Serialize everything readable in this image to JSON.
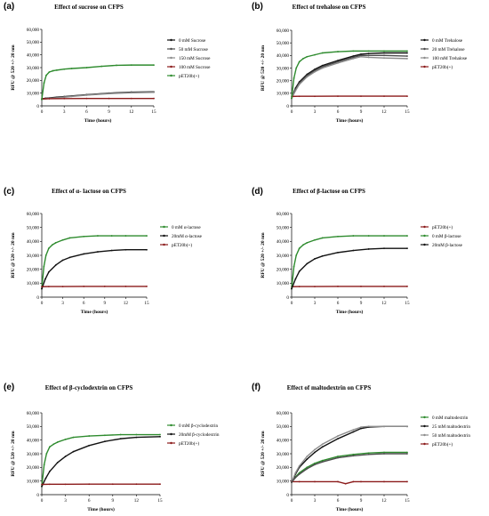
{
  "figure": {
    "colors": {
      "green": "#2e8b2e",
      "dark_red": "#8b1a1a",
      "black": "#111111",
      "grey": "#8c8c8c",
      "dark_grey": "#4d4d4d"
    }
  },
  "chart_data": [
    {
      "panel": "(a)",
      "type": "line",
      "title": "Effect of sucrose on CFPS",
      "xlabel": "Time (hours)",
      "ylabel": "RFU @ 520 +/- 20 nm",
      "xlim": [
        0,
        15
      ],
      "ylim": [
        0,
        60000
      ],
      "xticks": [
        "0",
        "3",
        "6",
        "9",
        "12",
        "15"
      ],
      "yticks": [
        "0",
        "10,000",
        "20,000",
        "30,000",
        "40,000",
        "50,000",
        "60,000"
      ],
      "legend_position": "right",
      "series": [
        {
          "name": "0 mM Sucrose",
          "color": "#111111",
          "x": [
            0,
            0.5,
            1,
            2,
            3,
            4,
            6,
            9,
            12,
            15
          ],
          "y": [
            5500,
            6000,
            6200,
            6800,
            7300,
            7800,
            8800,
            10000,
            10800,
            11000
          ]
        },
        {
          "name": "50 mM Sucrose",
          "color": "#4d4d4d",
          "x": [
            0,
            0.5,
            1,
            2,
            3,
            4,
            6,
            9,
            12,
            15
          ],
          "y": [
            5300,
            5800,
            6000,
            6500,
            7000,
            7600,
            8600,
            9800,
            10500,
            10800
          ]
        },
        {
          "name": "150 mM Sucrose",
          "color": "#8c8c8c",
          "x": [
            0,
            0.5,
            1,
            2,
            3,
            4,
            6,
            9,
            12,
            15
          ],
          "y": [
            5000,
            5500,
            5800,
            6200,
            6800,
            7400,
            8400,
            9600,
            10300,
            10600
          ]
        },
        {
          "name": "100 mM Sucrose",
          "color": "#8b1a1a",
          "x": [
            0,
            1,
            3,
            6,
            9,
            12,
            15
          ],
          "y": [
            5500,
            5600,
            5700,
            5800,
            5800,
            5800,
            5800
          ]
        },
        {
          "name": "pET20b(+)",
          "color": "#2e8b2e",
          "x": [
            0,
            0.3,
            0.6,
            1,
            1.5,
            2,
            3,
            4,
            6,
            8,
            10,
            12,
            15
          ],
          "y": [
            5000,
            18000,
            24000,
            26500,
            27500,
            28000,
            28800,
            29300,
            30000,
            31000,
            31800,
            32000,
            32000
          ]
        }
      ]
    },
    {
      "panel": "(b)",
      "type": "line",
      "title": "Effect of trehalose on CFPS",
      "xlabel": "Time (hours)",
      "ylabel": "RFU @ 520 +/- 20 nm",
      "xlim": [
        0,
        15
      ],
      "ylim": [
        0,
        60000
      ],
      "xticks": [
        "0",
        "3",
        "6",
        "9",
        "12",
        "15"
      ],
      "yticks": [
        "0",
        "10,000",
        "20,000",
        "30,000",
        "40,000",
        "50,000",
        "60,000"
      ],
      "legend_position": "right",
      "series": [
        {
          "name": "0 mM Trehalose",
          "color": "#111111",
          "x": [
            0,
            0.5,
            1,
            2,
            3,
            4,
            6,
            8,
            9,
            10,
            12,
            15
          ],
          "y": [
            6000,
            14000,
            19000,
            25000,
            29000,
            32000,
            36000,
            39500,
            41000,
            41500,
            42000,
            42000
          ]
        },
        {
          "name": "20 mM Trehalose",
          "color": "#4d4d4d",
          "x": [
            0,
            0.5,
            1,
            2,
            3,
            4,
            6,
            8,
            9,
            10,
            12,
            15
          ],
          "y": [
            6000,
            13000,
            18000,
            24000,
            28000,
            31000,
            35000,
            38500,
            40000,
            40000,
            40000,
            39500
          ]
        },
        {
          "name": "100 mM Trehalose",
          "color": "#8c8c8c",
          "x": [
            0,
            0.5,
            1,
            2,
            3,
            4,
            6,
            8,
            9,
            10,
            12,
            15
          ],
          "y": [
            6000,
            12000,
            17000,
            23000,
            27000,
            30000,
            34000,
            37500,
            39000,
            38500,
            38000,
            37500
          ]
        },
        {
          "name": "pET20b(+)",
          "color": "#8b1a1a",
          "x": [
            0,
            1,
            3,
            6,
            9,
            12,
            15
          ],
          "y": [
            7500,
            7600,
            7600,
            7700,
            7700,
            7700,
            7700
          ]
        },
        {
          "name": "",
          "color": "#2e8b2e",
          "x": [
            0,
            0.3,
            0.6,
            1,
            1.5,
            2,
            3,
            4,
            6,
            8,
            10,
            12,
            15
          ],
          "y": [
            6000,
            22000,
            30000,
            35000,
            37500,
            39000,
            40500,
            42000,
            43000,
            43500,
            43500,
            43500,
            43500
          ]
        }
      ]
    },
    {
      "panel": "(c)",
      "type": "line",
      "title": "Effect of α- lactose on CFPS",
      "xlabel": "Time (hours)",
      "ylabel": "RFU @ 520 +/- 20 nm",
      "xlim": [
        0,
        15
      ],
      "ylim": [
        0,
        60000
      ],
      "xticks": [
        "0",
        "3",
        "6",
        "9",
        "12",
        "15"
      ],
      "yticks": [
        "0",
        "10,000",
        "20,000",
        "30,000",
        "40,000",
        "50,000",
        "60,000"
      ],
      "legend_position": "right",
      "series": [
        {
          "name": "0 mM α-lactose",
          "color": "#2e8b2e",
          "x": [
            0,
            0.3,
            0.6,
            1,
            1.5,
            2,
            3,
            4,
            6,
            8,
            10,
            12,
            15
          ],
          "y": [
            6000,
            22000,
            30000,
            35000,
            37500,
            39000,
            41000,
            42500,
            43500,
            44000,
            44000,
            44000,
            44000
          ]
        },
        {
          "name": "20mM α-lactose",
          "color": "#111111",
          "x": [
            0,
            0.5,
            1,
            2,
            3,
            4,
            6,
            8,
            10,
            12,
            15
          ],
          "y": [
            6000,
            13000,
            18000,
            23000,
            26500,
            28500,
            31000,
            32500,
            33500,
            34000,
            34000
          ]
        },
        {
          "name": "pET20b(+)",
          "color": "#8b1a1a",
          "x": [
            0,
            1,
            3,
            6,
            9,
            12,
            15
          ],
          "y": [
            7500,
            7600,
            7600,
            7700,
            7700,
            7700,
            7700
          ]
        }
      ]
    },
    {
      "panel": "(d)",
      "type": "line",
      "title": "Effect of β-lactose on CFPS",
      "xlabel": "Time (hours)",
      "ylabel": "RFU @ 520 +/- 20 nm",
      "xlim": [
        0,
        15
      ],
      "ylim": [
        0,
        60000
      ],
      "xticks": [
        "0",
        "3",
        "6",
        "9",
        "12",
        "15"
      ],
      "yticks": [
        "0",
        "10,000",
        "20,000",
        "30,000",
        "40,000",
        "50,000",
        "60,000"
      ],
      "legend_position": "right",
      "series": [
        {
          "name": "pET20b(+)",
          "color": "#8b1a1a",
          "x": [
            0,
            1,
            3,
            6,
            9,
            12,
            15
          ],
          "y": [
            7500,
            7600,
            7600,
            7700,
            7700,
            7700,
            7700
          ]
        },
        {
          "name": "0 mM β-lactose",
          "color": "#2e8b2e",
          "x": [
            0,
            0.3,
            0.6,
            1,
            1.5,
            2,
            3,
            4,
            6,
            8,
            10,
            12,
            15
          ],
          "y": [
            6000,
            22000,
            30000,
            35000,
            37500,
            39000,
            41000,
            42500,
            43500,
            44000,
            44000,
            44000,
            44000
          ]
        },
        {
          "name": "20mM β-lactose",
          "color": "#111111",
          "x": [
            0,
            0.5,
            1,
            2,
            3,
            4,
            6,
            8,
            10,
            12,
            15
          ],
          "y": [
            6000,
            13000,
            18500,
            24000,
            27500,
            29500,
            32000,
            33500,
            34500,
            35000,
            35000
          ]
        }
      ]
    },
    {
      "panel": "(e)",
      "type": "line",
      "title": "Effect of β-cyclodextrin on CFPS",
      "xlabel": "Time (hours)",
      "ylabel": "RFU @ 520 +/- 20 nm",
      "xlim": [
        0,
        15
      ],
      "ylim": [
        0,
        60000
      ],
      "xticks": [
        "0",
        "3",
        "6",
        "9",
        "12",
        "15"
      ],
      "yticks": [
        "0",
        "10,000",
        "20,000",
        "30,000",
        "40,000",
        "50,000",
        "60,000"
      ],
      "legend_position": "right",
      "series": [
        {
          "name": "0 mM β-cyclodextrin",
          "color": "#2e8b2e",
          "x": [
            0,
            0.3,
            0.6,
            1,
            1.5,
            2,
            3,
            4,
            6,
            8,
            10,
            12,
            15
          ],
          "y": [
            6000,
            22000,
            30000,
            35000,
            37000,
            38500,
            40500,
            42000,
            43000,
            43500,
            44000,
            44000,
            44000
          ]
        },
        {
          "name": "20mM β-cyclodextrin",
          "color": "#111111",
          "x": [
            0,
            0.5,
            1,
            2,
            3,
            4,
            6,
            8,
            10,
            12,
            15
          ],
          "y": [
            6000,
            12000,
            17000,
            23500,
            28000,
            31500,
            36000,
            39000,
            41000,
            42000,
            42500
          ]
        },
        {
          "name": "pET20b(+)",
          "color": "#8b1a1a",
          "x": [
            0,
            1,
            3,
            6,
            9,
            12,
            15
          ],
          "y": [
            7500,
            7600,
            7600,
            7700,
            7700,
            7700,
            7700
          ]
        }
      ]
    },
    {
      "panel": "(f)",
      "type": "line",
      "title": "Effect of maltodextrin on CFPS",
      "xlabel": "Time (hours)",
      "ylabel": "RFU @ 520 +/- 20 nm",
      "xlim": [
        0,
        15
      ],
      "ylim": [
        0,
        60000
      ],
      "xticks": [
        "0",
        "3",
        "6",
        "9",
        "12",
        "15"
      ],
      "yticks": [
        "0",
        "10,000",
        "20,000",
        "30,000",
        "40,000",
        "50,000",
        "60,000"
      ],
      "legend_position": "right",
      "series": [
        {
          "name": "0 mM maltodextrin",
          "color": "#2e8b2e",
          "x": [
            0,
            0.5,
            1,
            2,
            3,
            4,
            6,
            8,
            10,
            12,
            15
          ],
          "y": [
            9000,
            13000,
            16000,
            20000,
            23000,
            25000,
            28000,
            29500,
            30500,
            31000,
            31000
          ]
        },
        {
          "name": "25 mM maltodextrin",
          "color": "#111111",
          "x": [
            0,
            0.5,
            1,
            2,
            3,
            4,
            6,
            8,
            9,
            10,
            12,
            15
          ],
          "y": [
            9000,
            15000,
            20000,
            26000,
            31000,
            35000,
            41000,
            46000,
            48500,
            49500,
            50000,
            50000
          ]
        },
        {
          "name": "50 mM maltodextrin",
          "color": "#8c8c8c",
          "x": [
            0,
            0.5,
            1,
            2,
            3,
            4,
            6,
            8,
            9,
            10,
            12,
            15
          ],
          "y": [
            9000,
            16000,
            21000,
            28000,
            33000,
            37000,
            43000,
            47500,
            49500,
            50000,
            50000,
            50000
          ]
        },
        {
          "name": "pET20b(+)",
          "color": "#8b1a1a",
          "x": [
            0,
            1,
            3,
            6,
            7,
            8,
            9,
            12,
            15
          ],
          "y": [
            9500,
            9500,
            9500,
            9500,
            8000,
            9500,
            9500,
            9500,
            9500
          ]
        },
        {
          "name": "",
          "color": "#4d4d4d",
          "x": [
            0,
            0.5,
            1,
            2,
            3,
            4,
            6,
            8,
            10,
            12,
            15
          ],
          "y": [
            9000,
            12500,
            15000,
            19000,
            22000,
            24000,
            27000,
            28500,
            29500,
            30000,
            30000
          ]
        }
      ]
    }
  ]
}
